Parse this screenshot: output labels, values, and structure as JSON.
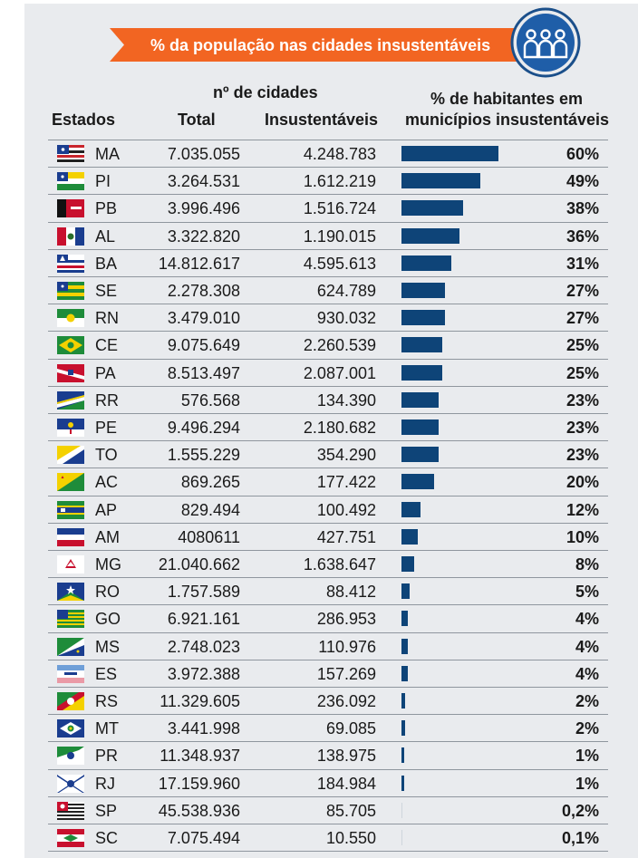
{
  "header": {
    "banner_title": "% da população nas cidades insustentáveis",
    "group_label": "nº de cidades",
    "col_states": "Estados",
    "col_total": "Total",
    "col_unsustainable": "Insustentáveis",
    "col_pct_line1": "% de habitantes em",
    "col_pct_line2": "municípios insustentáveis"
  },
  "colors": {
    "banner": "#f26522",
    "bar": "#0e4478",
    "icon_ring": "#1b4f8a",
    "icon_fill": "#1f5ea8"
  },
  "icons": {
    "people": "people-group-icon"
  },
  "chart_data": {
    "type": "table",
    "columns": [
      "Estados",
      "Total",
      "Insustentáveis",
      "% de habitantes em municípios insustentáveis"
    ],
    "rows": [
      {
        "state": "MA",
        "total": "7.035.055",
        "unsustainable": "4.248.783",
        "pct_label": "60%",
        "pct": 60
      },
      {
        "state": "PI",
        "total": "3.264.531",
        "unsustainable": "1.612.219",
        "pct_label": "49%",
        "pct": 49
      },
      {
        "state": "PB",
        "total": "3.996.496",
        "unsustainable": "1.516.724",
        "pct_label": "38%",
        "pct": 38
      },
      {
        "state": "AL",
        "total": "3.322.820",
        "unsustainable": "1.190.015",
        "pct_label": "36%",
        "pct": 36
      },
      {
        "state": "BA",
        "total": "14.812.617",
        "unsustainable": "4.595.613",
        "pct_label": "31%",
        "pct": 31
      },
      {
        "state": "SE",
        "total": "2.278.308",
        "unsustainable": "624.789",
        "pct_label": "27%",
        "pct": 27
      },
      {
        "state": "RN",
        "total": "3.479.010",
        "unsustainable": "930.032",
        "pct_label": "27%",
        "pct": 27
      },
      {
        "state": "CE",
        "total": "9.075.649",
        "unsustainable": "2.260.539",
        "pct_label": "25%",
        "pct": 25
      },
      {
        "state": "PA",
        "total": "8.513.497",
        "unsustainable": "2.087.001",
        "pct_label": "25%",
        "pct": 25
      },
      {
        "state": "RR",
        "total": "576.568",
        "unsustainable": "134.390",
        "pct_label": "23%",
        "pct": 23
      },
      {
        "state": "PE",
        "total": "9.496.294",
        "unsustainable": "2.180.682",
        "pct_label": "23%",
        "pct": 23
      },
      {
        "state": "TO",
        "total": "1.555.229",
        "unsustainable": "354.290",
        "pct_label": "23%",
        "pct": 23
      },
      {
        "state": "AC",
        "total": "869.265",
        "unsustainable": "177.422",
        "pct_label": "20%",
        "pct": 20
      },
      {
        "state": "AP",
        "total": "829.494",
        "unsustainable": "100.492",
        "pct_label": "12%",
        "pct": 12
      },
      {
        "state": "AM",
        "total": "4080611",
        "unsustainable": "427.751",
        "pct_label": "10%",
        "pct": 10
      },
      {
        "state": "MG",
        "total": "21.040.662",
        "unsustainable": "1.638.647",
        "pct_label": "8%",
        "pct": 8
      },
      {
        "state": "RO",
        "total": "1.757.589",
        "unsustainable": "88.412",
        "pct_label": "5%",
        "pct": 5
      },
      {
        "state": "GO",
        "total": "6.921.161",
        "unsustainable": "286.953",
        "pct_label": "4%",
        "pct": 4
      },
      {
        "state": "MS",
        "total": "2.748.023",
        "unsustainable": "110.976",
        "pct_label": "4%",
        "pct": 4
      },
      {
        "state": "ES",
        "total": "3.972.388",
        "unsustainable": "157.269",
        "pct_label": "4%",
        "pct": 4
      },
      {
        "state": "RS",
        "total": "11.329.605",
        "unsustainable": "236.092",
        "pct_label": "2%",
        "pct": 2
      },
      {
        "state": "MT",
        "total": "3.441.998",
        "unsustainable": "69.085",
        "pct_label": "2%",
        "pct": 2
      },
      {
        "state": "PR",
        "total": "11.348.937",
        "unsustainable": "138.975",
        "pct_label": "1%",
        "pct": 1
      },
      {
        "state": "RJ",
        "total": "17.159.960",
        "unsustainable": "184.984",
        "pct_label": "1%",
        "pct": 1
      },
      {
        "state": "SP",
        "total": "45.538.936",
        "unsustainable": "85.705",
        "pct_label": "0,2%",
        "pct": 0.2
      },
      {
        "state": "SC",
        "total": "7.075.494",
        "unsustainable": "10.550",
        "pct_label": "0,1%",
        "pct": 0.1
      }
    ]
  }
}
